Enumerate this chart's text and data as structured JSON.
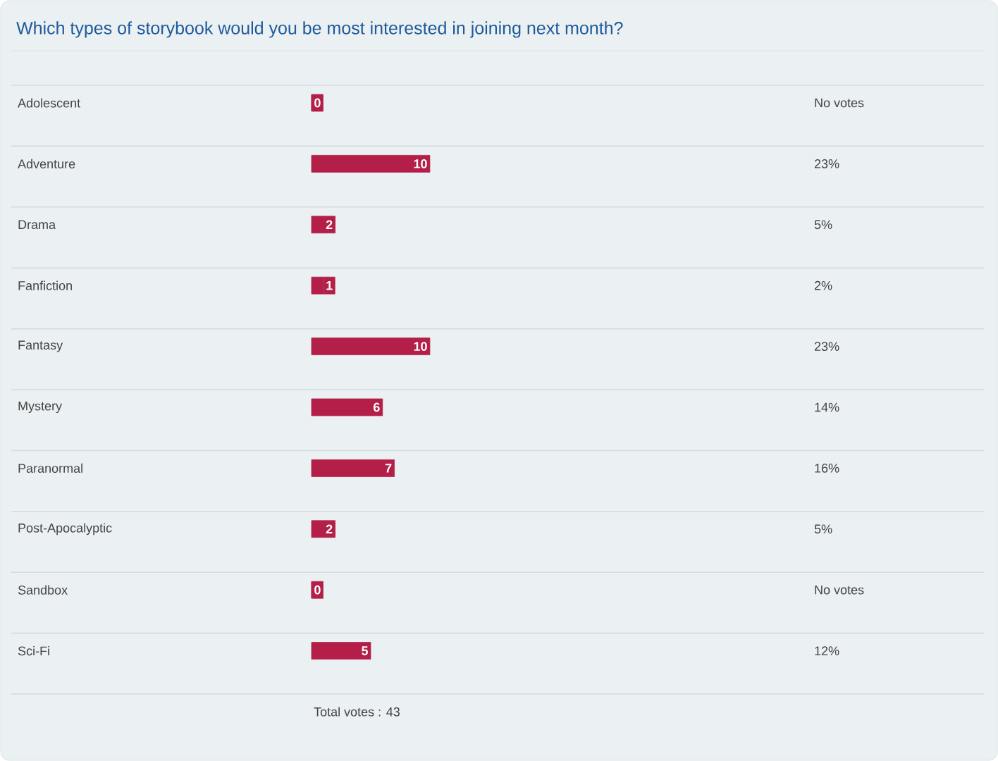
{
  "chart_data": {
    "type": "bar",
    "orientation": "horizontal",
    "title": "Which types of storybook would you be most interested in joining next month?",
    "categories": [
      "Adolescent",
      "Adventure",
      "Drama",
      "Fanfiction",
      "Fantasy",
      "Mystery",
      "Paranormal",
      "Post-Apocalyptic",
      "Sandbox",
      "Sci-Fi"
    ],
    "values": [
      0,
      10,
      2,
      1,
      10,
      6,
      7,
      2,
      0,
      5
    ],
    "color": "#b31f48",
    "data_labels": true,
    "annotations": [
      "No votes",
      "23%",
      "5%",
      "2%",
      "23%",
      "14%",
      "16%",
      "5%",
      "No votes",
      "12%",
      "Total votes : 43"
    ]
  }
}
